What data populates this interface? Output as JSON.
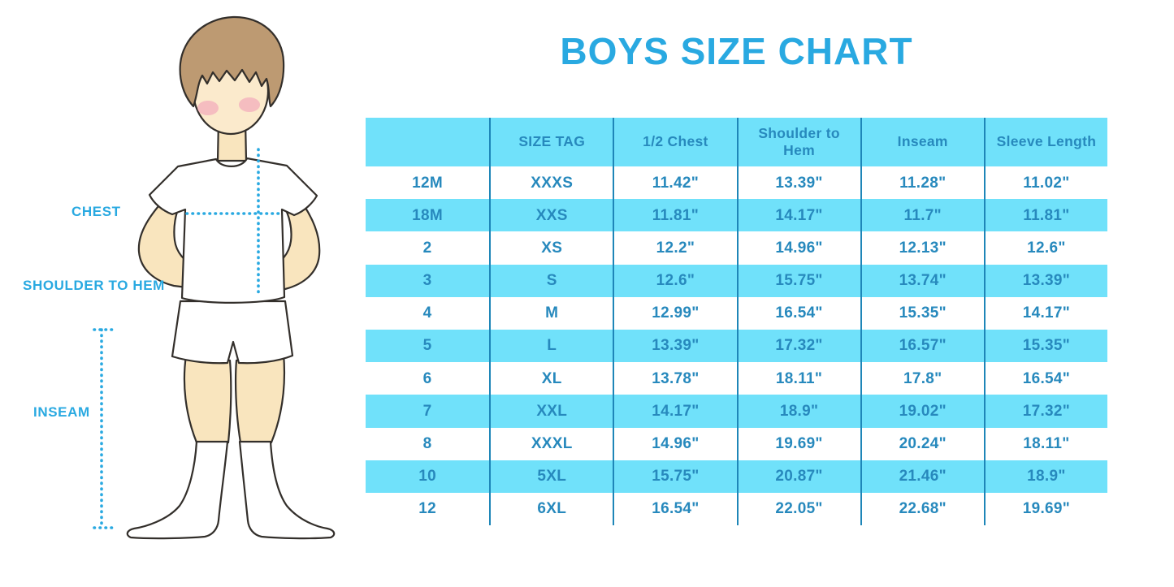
{
  "page": {
    "title": "BOYS SIZE CHART"
  },
  "theme": {
    "accent": "#29A9E1",
    "table_cyan": "#70E1FA",
    "table_divider": "#1E86B8",
    "table_text": "#2789BD",
    "outline": "#332F2B",
    "skin": "#F9E5BE",
    "face": "#FBEACC",
    "hair": "#BD9A72",
    "blush": "#F2A9BB",
    "page_bg": "#ffffff"
  },
  "figure": {
    "name": "boy-measurement-illustration",
    "labels": {
      "chest": "CHEST",
      "shoulder_to_hem": "SHOULDER TO HEM",
      "inseam": "INSEAM"
    }
  },
  "chart_data": {
    "type": "table",
    "title": "BOYS SIZE CHART",
    "columns": [
      "",
      "SIZE TAG",
      "1/2 Chest",
      "Shoulder to Hem",
      "Inseam",
      "Sleeve Length"
    ],
    "rows": [
      [
        "12M",
        "XXXS",
        "11.42\"",
        "13.39\"",
        "11.28\"",
        "11.02\""
      ],
      [
        "18M",
        "XXS",
        "11.81\"",
        "14.17\"",
        "11.7\"",
        "11.81\""
      ],
      [
        "2",
        "XS",
        "12.2\"",
        "14.96\"",
        "12.13\"",
        "12.6\""
      ],
      [
        "3",
        "S",
        "12.6\"",
        "15.75\"",
        "13.74\"",
        "13.39\""
      ],
      [
        "4",
        "M",
        "12.99\"",
        "16.54\"",
        "15.35\"",
        "14.17\""
      ],
      [
        "5",
        "L",
        "13.39\"",
        "17.32\"",
        "16.57\"",
        "15.35\""
      ],
      [
        "6",
        "XL",
        "13.78\"",
        "18.11\"",
        "17.8\"",
        "16.54\""
      ],
      [
        "7",
        "XXL",
        "14.17\"",
        "18.9\"",
        "19.02\"",
        "17.32\""
      ],
      [
        "8",
        "XXXL",
        "14.96\"",
        "19.69\"",
        "20.24\"",
        "18.11\""
      ],
      [
        "10",
        "5XL",
        "15.75\"",
        "20.87\"",
        "21.46\"",
        "18.9\""
      ],
      [
        "12",
        "6XL",
        "16.54\"",
        "22.05\"",
        "22.68\"",
        "19.69\""
      ]
    ],
    "layout": {
      "striped_rows": "alternating cyan starting with header",
      "grid": "vertical dividers only"
    }
  }
}
